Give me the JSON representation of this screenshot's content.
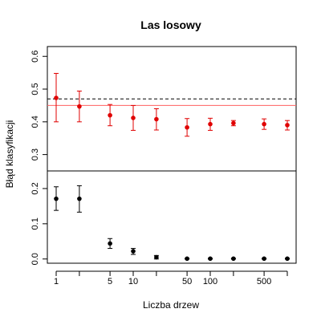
{
  "chart_data": {
    "type": "scatter",
    "title": "Las losowy",
    "xlabel": "Liczba drzew",
    "ylabel": "Błąd klasyfikacji",
    "x_scale": "log",
    "xlim": [
      0.8,
      1200
    ],
    "x_ticks": [
      1,
      5,
      10,
      50,
      100,
      500
    ],
    "x_tick_labels": [
      "1",
      "5",
      "10",
      "50",
      "100",
      "500"
    ],
    "panels": [
      {
        "name": "top",
        "ylim": [
          0.25,
          0.63
        ],
        "y_ticks": [
          0.3,
          0.4,
          0.5,
          0.6
        ],
        "y_tick_labels": [
          "0.3",
          "0.4",
          "0.5",
          "0.6"
        ],
        "color": "#e00000",
        "points": [
          {
            "x": 1,
            "y": 0.473,
            "lo": 0.4,
            "hi": 0.548
          },
          {
            "x": 2,
            "y": 0.447,
            "lo": 0.4,
            "hi": 0.494
          },
          {
            "x": 5,
            "y": 0.42,
            "lo": 0.388,
            "hi": 0.453
          },
          {
            "x": 10,
            "y": 0.412,
            "lo": 0.374,
            "hi": 0.45
          },
          {
            "x": 20,
            "y": 0.408,
            "lo": 0.375,
            "hi": 0.44
          },
          {
            "x": 50,
            "y": 0.383,
            "lo": 0.356,
            "hi": 0.41
          },
          {
            "x": 100,
            "y": 0.393,
            "lo": 0.374,
            "hi": 0.411
          },
          {
            "x": 200,
            "y": 0.396,
            "lo": 0.388,
            "hi": 0.404
          },
          {
            "x": 500,
            "y": 0.393,
            "lo": 0.377,
            "hi": 0.409
          },
          {
            "x": 1000,
            "y": 0.39,
            "lo": 0.375,
            "hi": 0.404
          }
        ],
        "reference_lines": [
          {
            "y": 0.47,
            "style": "dashed",
            "color": "#000000"
          },
          {
            "y": 0.45,
            "style": "solid",
            "color": "#ff6060"
          }
        ]
      },
      {
        "name": "bottom",
        "ylim": [
          -0.012,
          0.25
        ],
        "y_ticks": [
          0.0,
          0.1,
          0.2
        ],
        "y_tick_labels": [
          "0.0",
          "0.1",
          "0.2"
        ],
        "color": "#000000",
        "points": [
          {
            "x": 1,
            "y": 0.171,
            "lo": 0.138,
            "hi": 0.205
          },
          {
            "x": 2,
            "y": 0.171,
            "lo": 0.133,
            "hi": 0.208
          },
          {
            "x": 5,
            "y": 0.044,
            "lo": 0.03,
            "hi": 0.058
          },
          {
            "x": 10,
            "y": 0.022,
            "lo": 0.013,
            "hi": 0.03
          },
          {
            "x": 20,
            "y": 0.005,
            "lo": 0.0,
            "hi": 0.01
          },
          {
            "x": 50,
            "y": 0.001,
            "lo": 0.0,
            "hi": 0.002
          },
          {
            "x": 100,
            "y": 0.001,
            "lo": 0.0,
            "hi": 0.002
          },
          {
            "x": 200,
            "y": 0.001,
            "lo": 0.0,
            "hi": 0.002
          },
          {
            "x": 500,
            "y": 0.001,
            "lo": 0.0,
            "hi": 0.002
          },
          {
            "x": 1000,
            "y": 0.001,
            "lo": 0.0,
            "hi": 0.002
          }
        ]
      }
    ],
    "grid": false,
    "legend": "none"
  }
}
